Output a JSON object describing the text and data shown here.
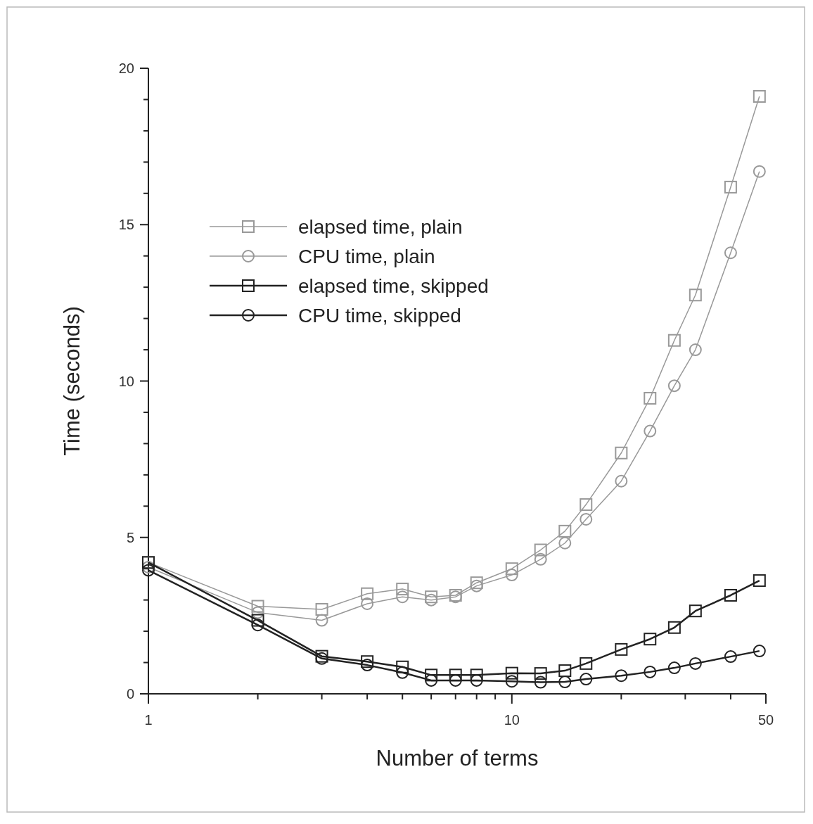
{
  "chart_data": {
    "type": "line",
    "xlabel": "Number of terms",
    "ylabel": "Time (seconds)",
    "log": "x",
    "x": [
      1,
      2,
      3,
      4,
      5,
      6,
      7,
      8,
      10,
      12,
      14,
      16,
      20,
      24,
      28,
      32,
      40,
      48
    ],
    "xlim": [
      1,
      50
    ],
    "xticks": [
      1,
      {
        "value": 2,
        "label": null
      },
      {
        "value": 3,
        "label": null
      },
      {
        "value": 4,
        "label": null
      },
      {
        "value": 5,
        "label": null
      },
      {
        "value": 6,
        "label": null
      },
      {
        "value": 7,
        "label": null
      },
      {
        "value": 8,
        "label": null
      },
      {
        "value": 9,
        "label": null
      },
      10,
      {
        "value": 20,
        "label": null
      },
      {
        "value": 30,
        "label": null
      },
      {
        "value": 40,
        "label": null
      },
      50
    ],
    "ylim": [
      0,
      20
    ],
    "yticks": [
      0,
      {
        "value": 1,
        "label": null
      },
      {
        "value": 2,
        "label": null
      },
      {
        "value": 3,
        "label": null
      },
      {
        "value": 4,
        "label": null
      },
      5,
      {
        "value": 6,
        "label": null
      },
      {
        "value": 7,
        "label": null
      },
      {
        "value": 8,
        "label": null
      },
      {
        "value": 9,
        "label": null
      },
      10,
      {
        "value": 11,
        "label": null
      },
      {
        "value": 12,
        "label": null
      },
      {
        "value": 13,
        "label": null
      },
      {
        "value": 14,
        "label": null
      },
      15,
      {
        "value": 16,
        "label": null
      },
      {
        "value": 17,
        "label": null
      },
      {
        "value": 18,
        "label": null
      },
      {
        "value": 19,
        "label": null
      },
      20
    ],
    "grid": false,
    "legend": "top left",
    "line_style": "solid",
    "series": [
      {
        "name": "elapsed time, plain",
        "color": "#999999",
        "marker": "square",
        "values": [
          4.2,
          2.8,
          2.7,
          3.2,
          3.35,
          3.1,
          3.15,
          3.55,
          4.0,
          4.6,
          5.2,
          6.05,
          7.7,
          9.45,
          11.3,
          12.75,
          16.2,
          19.1
        ]
      },
      {
        "name": "CPU time, plain",
        "color": "#999999",
        "marker": "circle",
        "values": [
          4.05,
          2.6,
          2.35,
          2.88,
          3.1,
          3.0,
          3.1,
          3.45,
          3.8,
          4.3,
          4.82,
          5.58,
          6.8,
          8.4,
          9.85,
          11.0,
          14.1,
          16.7
        ]
      },
      {
        "name": "elapsed time, skipped",
        "color": "#222222",
        "marker": "square",
        "values": [
          4.2,
          2.35,
          1.2,
          1.03,
          0.86,
          0.6,
          0.6,
          0.6,
          0.66,
          0.65,
          0.74,
          0.97,
          1.42,
          1.75,
          2.12,
          2.65,
          3.15,
          3.62
        ]
      },
      {
        "name": "CPU time, skipped",
        "color": "#222222",
        "marker": "circle",
        "values": [
          3.95,
          2.2,
          1.13,
          0.92,
          0.68,
          0.43,
          0.43,
          0.43,
          0.4,
          0.37,
          0.38,
          0.47,
          0.58,
          0.7,
          0.83,
          0.97,
          1.19,
          1.37
        ]
      }
    ]
  }
}
